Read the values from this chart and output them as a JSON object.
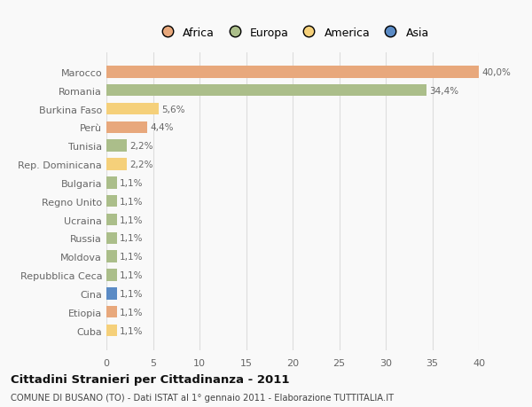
{
  "countries": [
    "Marocco",
    "Romania",
    "Burkina Faso",
    "Perù",
    "Tunisia",
    "Rep. Dominicana",
    "Bulgaria",
    "Regno Unito",
    "Ucraina",
    "Russia",
    "Moldova",
    "Repubblica Ceca",
    "Cina",
    "Etiopia",
    "Cuba"
  ],
  "values": [
    40.0,
    34.4,
    5.6,
    4.4,
    2.2,
    2.2,
    1.1,
    1.1,
    1.1,
    1.1,
    1.1,
    1.1,
    1.1,
    1.1,
    1.1
  ],
  "labels": [
    "40,0%",
    "34,4%",
    "5,6%",
    "4,4%",
    "2,2%",
    "2,2%",
    "1,1%",
    "1,1%",
    "1,1%",
    "1,1%",
    "1,1%",
    "1,1%",
    "1,1%",
    "1,1%",
    "1,1%"
  ],
  "colors": [
    "#E8A87C",
    "#ABBE8A",
    "#F5D07A",
    "#E8A87C",
    "#ABBE8A",
    "#F5D07A",
    "#ABBE8A",
    "#ABBE8A",
    "#ABBE8A",
    "#ABBE8A",
    "#ABBE8A",
    "#ABBE8A",
    "#5B8BC5",
    "#E8A87C",
    "#F5D07A"
  ],
  "continent_colors": {
    "Africa": "#E8A87C",
    "Europa": "#ABBE8A",
    "America": "#F5D07A",
    "Asia": "#5B8BC5"
  },
  "legend_labels": [
    "Africa",
    "Europa",
    "America",
    "Asia"
  ],
  "title": "Cittadini Stranieri per Cittadinanza - 2011",
  "subtitle": "COMUNE DI BUSANO (TO) - Dati ISTAT al 1° gennaio 2011 - Elaborazione TUTTITALIA.IT",
  "xlim": [
    0,
    40
  ],
  "xticks": [
    0,
    5,
    10,
    15,
    20,
    25,
    30,
    35,
    40
  ],
  "bg_color": "#f9f9f9",
  "grid_color": "#dddddd"
}
